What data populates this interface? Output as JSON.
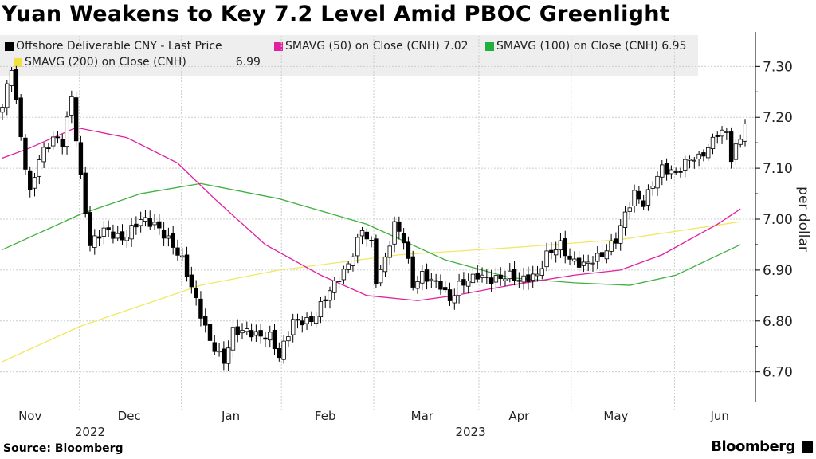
{
  "chart_data": {
    "type": "candlestick",
    "title": "Yuan Weakens to Key 7.2 Level Amid PBOC Greenlight",
    "ylabel": "per dollar",
    "ylim": [
      6.64,
      7.36
    ],
    "yticks": [
      "7.30",
      "7.20",
      "7.10",
      "7.00",
      "6.90",
      "6.80",
      "6.70"
    ],
    "ytick_values": [
      7.3,
      7.2,
      7.1,
      7.0,
      6.9,
      6.8,
      6.7
    ],
    "months": [
      {
        "label": "Nov",
        "day": 6
      },
      {
        "label": "Dec",
        "day": 27.5
      },
      {
        "label": "Jan",
        "day": 49.5
      },
      {
        "label": "Feb",
        "day": 70
      },
      {
        "label": "Mar",
        "day": 91
      },
      {
        "label": "Apr",
        "day": 112
      },
      {
        "label": "May",
        "day": 133
      },
      {
        "label": "Jun",
        "day": 155.5
      }
    ],
    "years": [
      {
        "label": "2022",
        "day": 19
      },
      {
        "label": "2023",
        "day": 101.5
      }
    ],
    "month_boundaries": [
      16.7,
      38.8,
      60.5,
      80.5,
      103.3,
      123.3,
      145.7
    ],
    "xlim": [
      0,
      163
    ],
    "price_keypoints": [
      [
        0,
        7.22
      ],
      [
        2,
        7.3
      ],
      [
        4,
        7.16
      ],
      [
        6,
        7.05
      ],
      [
        8,
        7.12
      ],
      [
        11,
        7.16
      ],
      [
        13,
        7.15
      ],
      [
        15,
        7.24
      ],
      [
        17,
        7.08
      ],
      [
        19,
        6.95
      ],
      [
        22,
        6.98
      ],
      [
        26,
        6.96
      ],
      [
        30,
        7.0
      ],
      [
        33,
        6.99
      ],
      [
        36,
        6.96
      ],
      [
        39,
        6.92
      ],
      [
        42,
        6.84
      ],
      [
        45,
        6.76
      ],
      [
        48,
        6.72
      ],
      [
        50,
        6.78
      ],
      [
        53,
        6.78
      ],
      [
        56,
        6.77
      ],
      [
        58,
        6.77
      ],
      [
        60,
        6.73
      ],
      [
        63,
        6.8
      ],
      [
        67,
        6.8
      ],
      [
        71,
        6.86
      ],
      [
        75,
        6.91
      ],
      [
        78,
        6.98
      ],
      [
        80,
        6.95
      ],
      [
        81,
        6.88
      ],
      [
        83,
        6.92
      ],
      [
        85,
        6.99
      ],
      [
        87,
        6.96
      ],
      [
        89,
        6.87
      ],
      [
        91,
        6.89
      ],
      [
        95,
        6.87
      ],
      [
        97,
        6.84
      ],
      [
        99,
        6.87
      ],
      [
        103,
        6.89
      ],
      [
        106,
        6.88
      ],
      [
        110,
        6.89
      ],
      [
        112,
        6.88
      ],
      [
        116,
        6.89
      ],
      [
        118,
        6.93
      ],
      [
        121,
        6.95
      ],
      [
        123,
        6.92
      ],
      [
        126,
        6.91
      ],
      [
        130,
        6.93
      ],
      [
        133,
        6.96
      ],
      [
        135,
        7.01
      ],
      [
        137,
        7.05
      ],
      [
        139,
        7.03
      ],
      [
        141,
        7.07
      ],
      [
        143,
        7.1
      ],
      [
        146,
        7.09
      ],
      [
        149,
        7.12
      ],
      [
        151,
        7.12
      ],
      [
        153,
        7.14
      ],
      [
        155,
        7.17
      ],
      [
        157,
        7.17
      ],
      [
        158,
        7.12
      ],
      [
        160,
        7.16
      ],
      [
        161,
        7.19
      ]
    ],
    "series": [
      {
        "name": "Offshore Deliverable CNY - Last Price",
        "color": "#000000"
      },
      {
        "name": "SMAVG (50)  on Close (CNH)",
        "last": "7.02",
        "color": "#e020a0",
        "points": [
          [
            0,
            7.12
          ],
          [
            6,
            7.14
          ],
          [
            16,
            7.18
          ],
          [
            27,
            7.16
          ],
          [
            38,
            7.11
          ],
          [
            46,
            7.04
          ],
          [
            57,
            6.95
          ],
          [
            69,
            6.89
          ],
          [
            79,
            6.85
          ],
          [
            90,
            6.84
          ],
          [
            98,
            6.85
          ],
          [
            110,
            6.87
          ],
          [
            124,
            6.89
          ],
          [
            134,
            6.9
          ],
          [
            143,
            6.93
          ],
          [
            155,
            6.99
          ],
          [
            160,
            7.02
          ]
        ]
      },
      {
        "name": "SMAVG (100)  on Close (CNH)",
        "last": "6.95",
        "color": "#40b040",
        "points": [
          [
            0,
            6.94
          ],
          [
            17,
            7.01
          ],
          [
            30,
            7.05
          ],
          [
            43,
            7.07
          ],
          [
            60,
            7.04
          ],
          [
            79,
            6.99
          ],
          [
            96,
            6.92
          ],
          [
            110,
            6.885
          ],
          [
            124,
            6.875
          ],
          [
            136,
            6.87
          ],
          [
            146,
            6.89
          ],
          [
            160,
            6.95
          ]
        ]
      },
      {
        "name": "SMAVG (200)  on Close (CNH)",
        "last": "6.99",
        "color": "#f0e860",
        "points": [
          [
            0,
            6.72
          ],
          [
            17,
            6.79
          ],
          [
            43,
            6.87
          ],
          [
            60,
            6.9
          ],
          [
            86,
            6.93
          ],
          [
            112,
            6.945
          ],
          [
            134,
            6.96
          ],
          [
            160,
            6.995
          ]
        ]
      }
    ],
    "source": "Source: Bloomberg",
    "brand": "Bloomberg"
  }
}
